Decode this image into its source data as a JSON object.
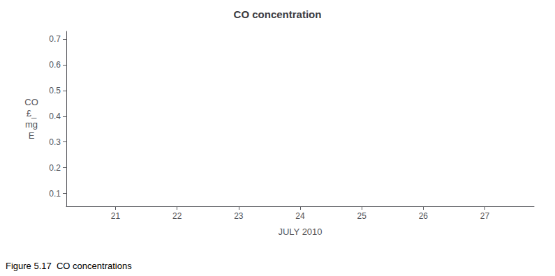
{
  "chart_data": {
    "type": "line",
    "title": "CO concentration",
    "xlabel": "JULY 2010",
    "ylabel": "CO\n£_\nmg\nE",
    "annotations": [
      "Figure 5.17  CO concentrations"
    ],
    "xlim": [
      20.2,
      27.8
    ],
    "xticks": [
      21,
      22,
      23,
      24,
      25,
      26,
      27
    ],
    "ylim": [
      0.05,
      0.73
    ],
    "yticks": [
      0.1,
      0.2,
      0.3,
      0.4,
      0.5,
      0.6,
      0.7
    ],
    "grid": false
  }
}
